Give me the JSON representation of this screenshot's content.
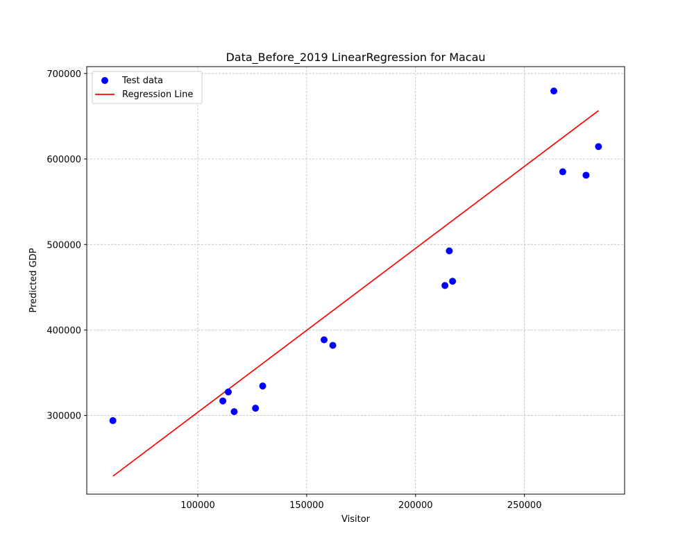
{
  "chart_data": {
    "type": "scatter",
    "title": "Data_Before_2019 LinearRegression for Macau",
    "xlabel": "Visitor",
    "ylabel": "Predicted GDP",
    "xlim": [
      49000,
      296000
    ],
    "ylim": [
      208000,
      708000
    ],
    "xticks": [
      100000,
      150000,
      200000,
      250000
    ],
    "yticks": [
      300000,
      400000,
      500000,
      600000,
      700000
    ],
    "grid": true,
    "legend": {
      "placement": "top-left",
      "entries": [
        "Test data",
        "Regression Line"
      ]
    },
    "series": [
      {
        "name": "Test data",
        "type": "scatter",
        "color": "#0000ff",
        "x": [
          61000,
          111500,
          114000,
          116700,
          126500,
          129800,
          158000,
          162000,
          213500,
          215500,
          217000,
          263500,
          267600,
          278300,
          284000
        ],
        "y": [
          294000,
          317000,
          327500,
          304500,
          308500,
          334500,
          388500,
          382000,
          452000,
          492500,
          457000,
          679500,
          585000,
          581000,
          614500
        ]
      },
      {
        "name": "Regression Line",
        "type": "line",
        "color": "#ff0000",
        "x": [
          61000,
          284000
        ],
        "y": [
          229000,
          656500
        ]
      }
    ]
  }
}
